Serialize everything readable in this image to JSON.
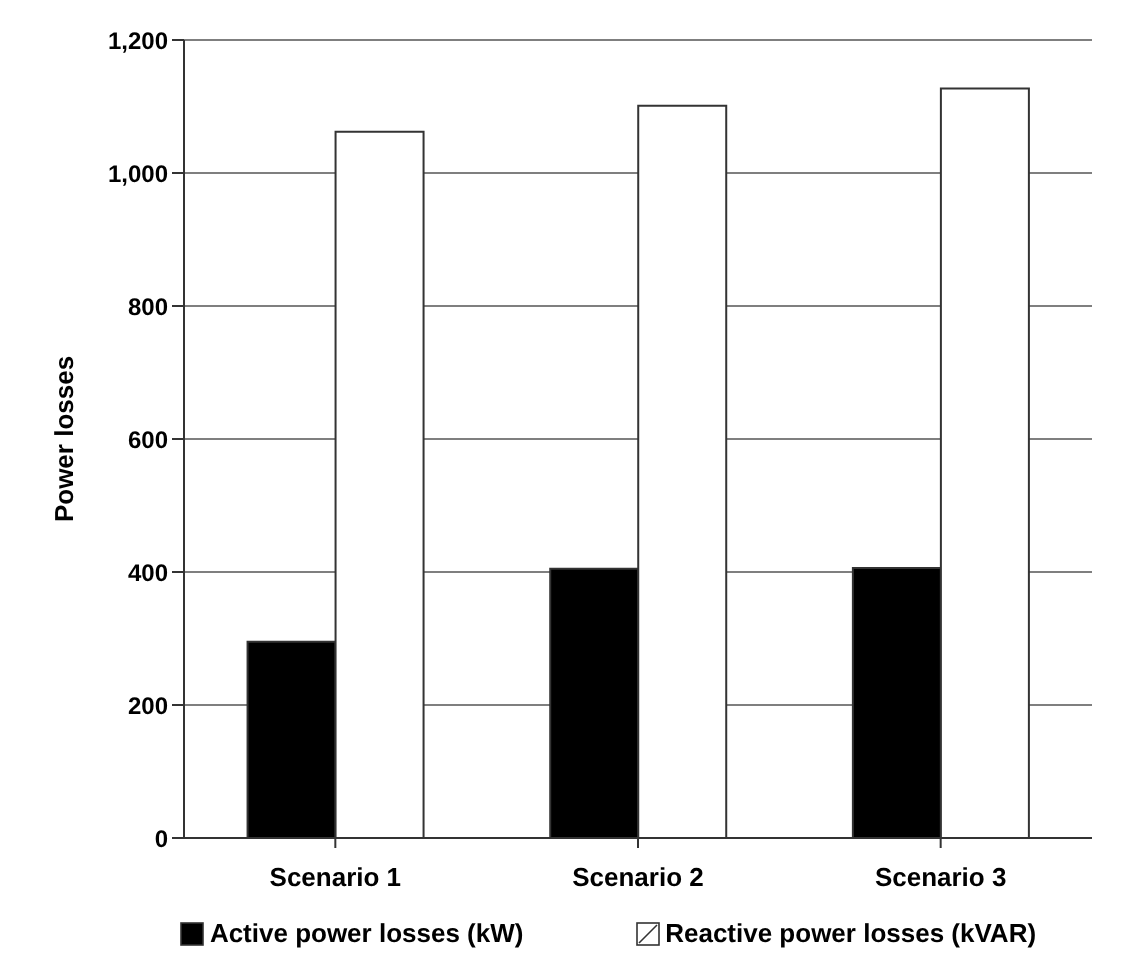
{
  "chart_data": {
    "type": "bar",
    "ylabel": "Power losses",
    "categories": [
      "Scenario 1",
      "Scenario 2",
      "Scenario 3"
    ],
    "series": [
      {
        "name": "Active power losses (kW)",
        "color": "#000000",
        "values": [
          295,
          405,
          406
        ]
      },
      {
        "name": "Reactive power losses (kVAR)",
        "color": "#ffffff",
        "values": [
          1062,
          1101,
          1127
        ]
      }
    ],
    "ylim": [
      0,
      1200
    ],
    "yticks": [
      {
        "value": 0,
        "label": "0"
      },
      {
        "value": 200,
        "label": "200"
      },
      {
        "value": 400,
        "label": "400"
      },
      {
        "value": 600,
        "label": "600"
      },
      {
        "value": 800,
        "label": "800"
      },
      {
        "value": 1000,
        "label": "1,000"
      },
      {
        "value": 1200,
        "label": "1,200"
      }
    ],
    "grid": "y",
    "legend": "bottom"
  }
}
